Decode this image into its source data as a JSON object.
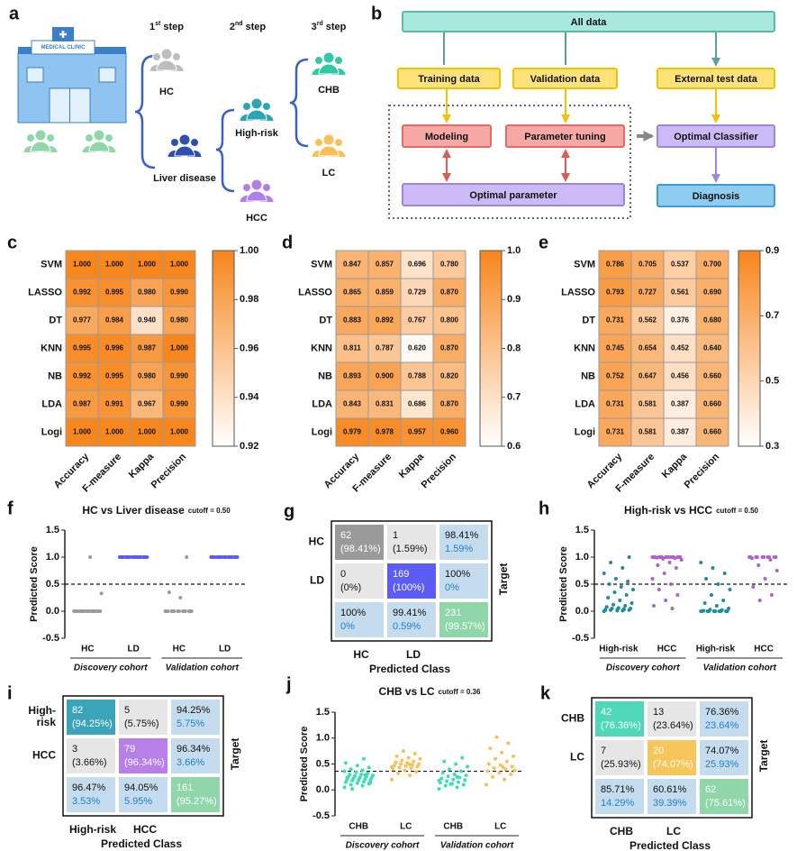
{
  "figure_a": {
    "label": "a",
    "clinic_sign": "MEDICAL CLINIC",
    "steps": [
      {
        "num": "1",
        "sup": "st",
        "text": "step"
      },
      {
        "num": "2",
        "sup": "nd",
        "text": "step"
      },
      {
        "num": "3",
        "sup": "rd",
        "text": "step"
      }
    ],
    "nodes": {
      "hc": "HC",
      "liver": "Liver disease",
      "highrisk": "High-risk",
      "hcc": "HCC",
      "chb": "CHB",
      "lc": "LC"
    }
  },
  "figure_b": {
    "label": "b",
    "nodes": [
      "All data",
      "Training data",
      "Validation data",
      "External test data",
      "Modeling",
      "Parameter tuning",
      "Optimal Classifier",
      "Optimal parameter",
      "Diagnosis"
    ]
  },
  "chart_data": [
    {
      "type": "heatmap",
      "label": "c",
      "rows": [
        "SVM",
        "LASSO",
        "DT",
        "KNN",
        "NB",
        "LDA",
        "Logi"
      ],
      "columns": [
        "Accuracy",
        "F-measure",
        "Kappa",
        "Precision"
      ],
      "values": [
        [
          1,
          1,
          1,
          1
        ],
        [
          0.992,
          0.995,
          0.98,
          0.99
        ],
        [
          0.977,
          0.984,
          0.94,
          0.98
        ],
        [
          0.995,
          0.996,
          0.987,
          1
        ],
        [
          0.992,
          0.995,
          0.98,
          0.99
        ],
        [
          0.987,
          0.991,
          0.967,
          0.99
        ],
        [
          1,
          1,
          1,
          1
        ]
      ],
      "value_labels": [
        [
          "1.000",
          "1.000",
          "1.000",
          "1.000"
        ],
        [
          "0.992",
          "0.995",
          "0.980",
          "0.990"
        ],
        [
          "0.977",
          "0.984",
          "0.940",
          "0.980"
        ],
        [
          "0.995",
          "0.996",
          "0.987",
          "1.000"
        ],
        [
          "0.992",
          "0.995",
          "0.980",
          "0.990"
        ],
        [
          "0.987",
          "0.991",
          "0.967",
          "0.990"
        ],
        [
          "1.000",
          "1.000",
          "1.000",
          "1.000"
        ]
      ],
      "clim": [
        0.92,
        1
      ],
      "cticks": [
        0.92,
        0.94,
        0.96,
        0.98,
        {
          "value": 1,
          "label": "1.00"
        }
      ],
      "colors": [
        "#ffffff",
        "#f7861c"
      ]
    },
    {
      "type": "heatmap",
      "label": "d",
      "rows": [
        "SVM",
        "LASSO",
        "DT",
        "KNN",
        "NB",
        "LDA",
        "Logi"
      ],
      "columns": [
        "Accuracy",
        "F-measure",
        "Kappa",
        "Precision"
      ],
      "values": [
        [
          0.847,
          0.857,
          0.696,
          0.78
        ],
        [
          0.865,
          0.859,
          0.729,
          0.87
        ],
        [
          0.883,
          0.892,
          0.767,
          0.8
        ],
        [
          0.811,
          0.787,
          0.62,
          0.87
        ],
        [
          0.893,
          0.9,
          0.788,
          0.82
        ],
        [
          0.843,
          0.831,
          0.686,
          0.87
        ],
        [
          0.979,
          0.978,
          0.957,
          0.96
        ]
      ],
      "value_labels": [
        [
          "0.847",
          "0.857",
          "0.696",
          "0.780"
        ],
        [
          "0.865",
          "0.859",
          "0.729",
          "0.870"
        ],
        [
          "0.883",
          "0.892",
          "0.767",
          "0.800"
        ],
        [
          "0.811",
          "0.787",
          "0.620",
          "0.870"
        ],
        [
          "0.893",
          "0.900",
          "0.788",
          "0.820"
        ],
        [
          "0.843",
          "0.831",
          "0.686",
          "0.870"
        ],
        [
          "0.979",
          "0.978",
          "0.957",
          "0.960"
        ]
      ],
      "clim": [
        0.6,
        1
      ],
      "cticks": [
        0.6,
        0.7,
        0.8,
        0.9,
        {
          "value": 1,
          "label": "1.0"
        }
      ],
      "colors": [
        "#ffffff",
        "#f7861c"
      ]
    },
    {
      "type": "heatmap",
      "label": "e",
      "rows": [
        "SVM",
        "LASSO",
        "DT",
        "KNN",
        "NB",
        "LDA",
        "Logi"
      ],
      "columns": [
        "Accuracy",
        "F-measure",
        "Kappa",
        "Precision"
      ],
      "values": [
        [
          0.786,
          0.705,
          0.537,
          0.7
        ],
        [
          0.793,
          0.727,
          0.561,
          0.69
        ],
        [
          0.731,
          0.562,
          0.376,
          0.68
        ],
        [
          0.745,
          0.654,
          0.452,
          0.64
        ],
        [
          0.752,
          0.647,
          0.456,
          0.66
        ],
        [
          0.731,
          0.581,
          0.387,
          0.66
        ],
        [
          0.731,
          0.581,
          0.387,
          0.66
        ]
      ],
      "value_labels": [
        [
          "0.786",
          "0.705",
          "0.537",
          "0.700"
        ],
        [
          "0.793",
          "0.727",
          "0.561",
          "0.690"
        ],
        [
          "0.731",
          "0.562",
          "0.376",
          "0.680"
        ],
        [
          "0.745",
          "0.654",
          "0.452",
          "0.640"
        ],
        [
          "0.752",
          "0.647",
          "0.456",
          "0.660"
        ],
        [
          "0.731",
          "0.581",
          "0.387",
          "0.660"
        ],
        [
          "0.731",
          "0.581",
          "0.387",
          "0.660"
        ]
      ],
      "clim": [
        0.3,
        0.9
      ],
      "cticks": [
        0.3,
        0.5,
        0.7,
        0.9
      ],
      "colors": [
        "#ffffff",
        "#f7861c"
      ]
    },
    {
      "type": "strip",
      "label": "f",
      "title": "HC vs Liver disease",
      "cutoff": 0.5,
      "cutoff_label": "cutoff = 0.50",
      "ylabel": "Predicted Score",
      "categories": [
        "HC",
        "LD",
        "HC",
        "LD"
      ],
      "cohorts": [
        "Discovery cohort",
        "Validation cohort"
      ],
      "colors": [
        "#9a9a9a",
        "#5b5bf5",
        "#9a9a9a",
        "#5b5bf5"
      ],
      "values": [
        [
          0,
          0,
          0,
          0,
          0,
          0,
          0,
          0,
          0,
          0,
          0,
          0,
          0,
          0,
          0,
          0,
          0,
          0,
          0.33,
          1
        ],
        [
          1,
          1,
          1,
          1,
          1,
          1,
          1,
          1,
          1,
          1,
          1,
          1,
          1,
          1,
          1,
          1,
          1,
          1,
          1,
          1
        ],
        [
          0,
          0,
          0,
          0,
          0,
          0,
          0,
          0,
          0,
          0,
          0,
          0,
          0,
          0,
          0.25,
          0.35,
          1
        ],
        [
          1,
          1,
          1,
          1,
          1,
          1,
          1,
          1,
          1,
          1,
          1,
          1,
          1,
          1,
          1,
          1,
          1,
          1
        ]
      ],
      "ylim": [
        -0.5,
        1.5
      ],
      "yticks": [
        -0.5,
        {
          "value": 0,
          "label": "0.0"
        },
        0.5,
        {
          "value": 1,
          "label": "1.0"
        },
        1.5
      ]
    },
    {
      "type": "strip",
      "label": "h",
      "title": "High-risk vs HCC",
      "cutoff": 0.5,
      "cutoff_label": "cutoff = 0.50",
      "ylabel": "Predicted Score",
      "categories": [
        "High-risk",
        "HCC",
        "High-risk",
        "HCC"
      ],
      "cohorts": [
        "Discovery cohort",
        "Validation cohort"
      ],
      "colors": [
        "#1d8c9e",
        "#b25fd0",
        "#1d8c9e",
        "#b25fd0"
      ],
      "values": [
        [
          0,
          0.01,
          0.02,
          0.02,
          0.03,
          0.03,
          0.04,
          0.05,
          0.05,
          0.06,
          0.08,
          0.1,
          0.12,
          0.15,
          0.2,
          0.25,
          0.3,
          0.35,
          0.4,
          0.45,
          0.5,
          0.55,
          0.6,
          0.7,
          0.8,
          0.9,
          1,
          0.01,
          0.02,
          0.03
        ],
        [
          1,
          1,
          1,
          1,
          1,
          1,
          1,
          1,
          1,
          1,
          1,
          1,
          1,
          1,
          1,
          0.99,
          0.98,
          0.97,
          0.95,
          0.9,
          0.85,
          0.8,
          0.7,
          0.6,
          0.5,
          0.4,
          0.3,
          0.2,
          0.1,
          0.05
        ],
        [
          0,
          0,
          0,
          0,
          0,
          0,
          0,
          0,
          0,
          0,
          0.01,
          0.02,
          0.03,
          0.05,
          0.1,
          0.15,
          0.2,
          0.3,
          0.4,
          0.5,
          0.6,
          0.7,
          0.8,
          0.9
        ],
        [
          1,
          1,
          1,
          1,
          1,
          1,
          1,
          1,
          1,
          1,
          0.98,
          0.95,
          0.85,
          0.75,
          0.6,
          0.45,
          0.3,
          0.2
        ]
      ],
      "ylim": [
        -0.5,
        1.5
      ],
      "yticks": [
        -0.5,
        {
          "value": 0,
          "label": "0.0"
        },
        0.5,
        {
          "value": 1,
          "label": "1.0"
        },
        1.5
      ]
    },
    {
      "type": "strip",
      "label": "j",
      "title": "CHB vs LC",
      "cutoff": 0.36,
      "cutoff_label": "cutoff = 0.36",
      "ylabel": "Predicted Score",
      "categories": [
        "CHB",
        "LC",
        "CHB",
        "LC"
      ],
      "cohorts": [
        "Discovery cohort",
        "Validation cohort"
      ],
      "colors": [
        "#3fdcb5",
        "#f6c05a",
        "#3fdcb5",
        "#f6c05a"
      ],
      "values": [
        [
          0.05,
          0.08,
          0.1,
          0.12,
          0.13,
          0.15,
          0.16,
          0.18,
          0.18,
          0.2,
          0.2,
          0.21,
          0.22,
          0.23,
          0.24,
          0.25,
          0.26,
          0.27,
          0.28,
          0.3,
          0.3,
          0.32,
          0.34,
          0.36,
          0.38,
          0.4,
          0.43,
          0.47,
          0.52,
          0.6,
          0.02,
          0.14,
          0.19,
          0.24,
          0.29
        ],
        [
          0.2,
          0.28,
          0.32,
          0.35,
          0.38,
          0.4,
          0.42,
          0.43,
          0.45,
          0.46,
          0.47,
          0.48,
          0.5,
          0.5,
          0.52,
          0.53,
          0.55,
          0.57,
          0.6,
          0.62,
          0.65,
          0.7,
          0.75,
          0.44,
          0.49
        ],
        [
          0.02,
          0.05,
          0.08,
          0.1,
          0.12,
          0.14,
          0.15,
          0.17,
          0.19,
          0.2,
          0.22,
          0.24,
          0.26,
          0.28,
          0.3,
          0.33,
          0.36,
          0.4,
          0.45,
          0.5,
          0.55,
          0.62,
          0.11,
          0.18,
          0.25
        ],
        [
          0.1,
          0.2,
          0.25,
          0.3,
          0.33,
          0.36,
          0.4,
          0.42,
          0.45,
          0.48,
          0.5,
          0.55,
          0.6,
          0.65,
          0.72,
          0.8,
          0.9,
          1.02,
          0.38,
          0.44
        ]
      ],
      "ylim": [
        -0.5,
        1.5
      ],
      "yticks": [
        -0.5,
        {
          "value": 0,
          "label": "0.0"
        },
        0.5,
        {
          "value": 1,
          "label": "1.0"
        },
        1.5
      ]
    }
  ],
  "matrices": [
    {
      "label": "g",
      "rows": [
        [
          "HC"
        ],
        [
          "LD"
        ]
      ],
      "columns": [
        "HC",
        "LD"
      ],
      "target": "Target",
      "xlabel": "Predicted Class",
      "diag_colors": [
        "#9a9a9a",
        "#5b5bf5",
        "#8fd6a9"
      ],
      "cells": [
        [
          [
            "62",
            "(98.41%)"
          ],
          [
            "1",
            "(1.59%)"
          ],
          [
            "98.41%",
            "1.59%"
          ]
        ],
        [
          [
            "0",
            "(0%)"
          ],
          [
            "169",
            "(100%)"
          ],
          [
            "100%",
            "0%"
          ]
        ],
        [
          [
            "100%",
            "0%"
          ],
          [
            "99.41%",
            "0.59%"
          ],
          [
            "231",
            "(99.57%)"
          ]
        ]
      ]
    },
    {
      "label": "i",
      "rows": [
        [
          "High-",
          "risk"
        ],
        [
          "HCC"
        ]
      ],
      "columns": [
        "High-risk",
        "HCC"
      ],
      "target": "Target",
      "xlabel": "Predicted Class",
      "diag_colors": [
        "#3aa5b8",
        "#b77fe8",
        "#8fd6a9"
      ],
      "cells": [
        [
          [
            "82",
            "(94.25%)"
          ],
          [
            "5",
            "(5.75%)"
          ],
          [
            "94.25%",
            "5.75%"
          ]
        ],
        [
          [
            "3",
            "(3.66%)"
          ],
          [
            "79",
            "(96.34%)"
          ],
          [
            "96.34%",
            "3.66%"
          ]
        ],
        [
          [
            "96.47%",
            "3.53%"
          ],
          [
            "94.05%",
            "5.95%"
          ],
          [
            "161",
            "(95.27%)"
          ]
        ]
      ]
    },
    {
      "label": "k",
      "rows": [
        [
          "CHB"
        ],
        [
          "LC"
        ]
      ],
      "columns": [
        "CHB",
        "LC"
      ],
      "target": "Target",
      "xlabel": "Predicted Class",
      "diag_colors": [
        "#4fd8b8",
        "#f7c65a",
        "#8fd6a9"
      ],
      "cells": [
        [
          [
            "42",
            "(76.36%)"
          ],
          [
            "13",
            "(23.64%)"
          ],
          [
            "76.36%",
            "23.64%"
          ]
        ],
        [
          [
            "7",
            "(25.93%)"
          ],
          [
            "20",
            "(74.07%)"
          ],
          [
            "74.07%",
            "25.93%"
          ]
        ],
        [
          [
            "85.71%",
            "14.29%"
          ],
          [
            "60.61%",
            "39.39%"
          ],
          [
            "62",
            "(75.61%)"
          ]
        ]
      ]
    }
  ]
}
